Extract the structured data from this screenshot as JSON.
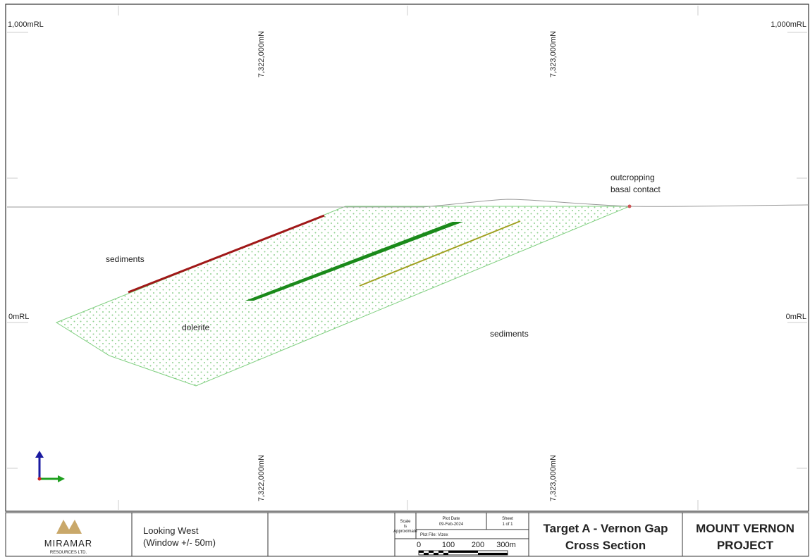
{
  "section": {
    "top_left_elevation": "1,000mRL",
    "top_right_elevation": "1,000mRL",
    "mid_left_elevation": "0mRL",
    "mid_right_elevation": "0mRL",
    "northings_top": [
      "7,322,000mN",
      "7,323,000mN"
    ],
    "northings_bottom": [
      "7,322,000mN",
      "7,323,000mN"
    ],
    "annotations": {
      "outcrop_1": "outcropping",
      "outcrop_2": "basal contact",
      "sediments_upper": "sediments",
      "dolerite": "dolerite",
      "sediments_lower": "sediments"
    }
  },
  "title_block": {
    "company": "MIRAMAR",
    "company_sub": "RESOURCES LTD.",
    "view_1": "Looking West",
    "view_2": "(Window +/- 50m)",
    "scale_note": [
      "Scale",
      "is",
      "Approximate"
    ],
    "plot_date_label": "Plot Date",
    "plot_date": "09-Feb-2024",
    "sheet_label": "Sheet",
    "sheet": "1 of 1",
    "plot_file": "Plot File: Vizex",
    "scale_labels": [
      "0",
      "100",
      "200",
      "300m"
    ],
    "title_1": "Target A - Vernon Gap",
    "title_2": "Cross Section",
    "project_1": "MOUNT VERNON",
    "project_2": "PROJECT"
  }
}
